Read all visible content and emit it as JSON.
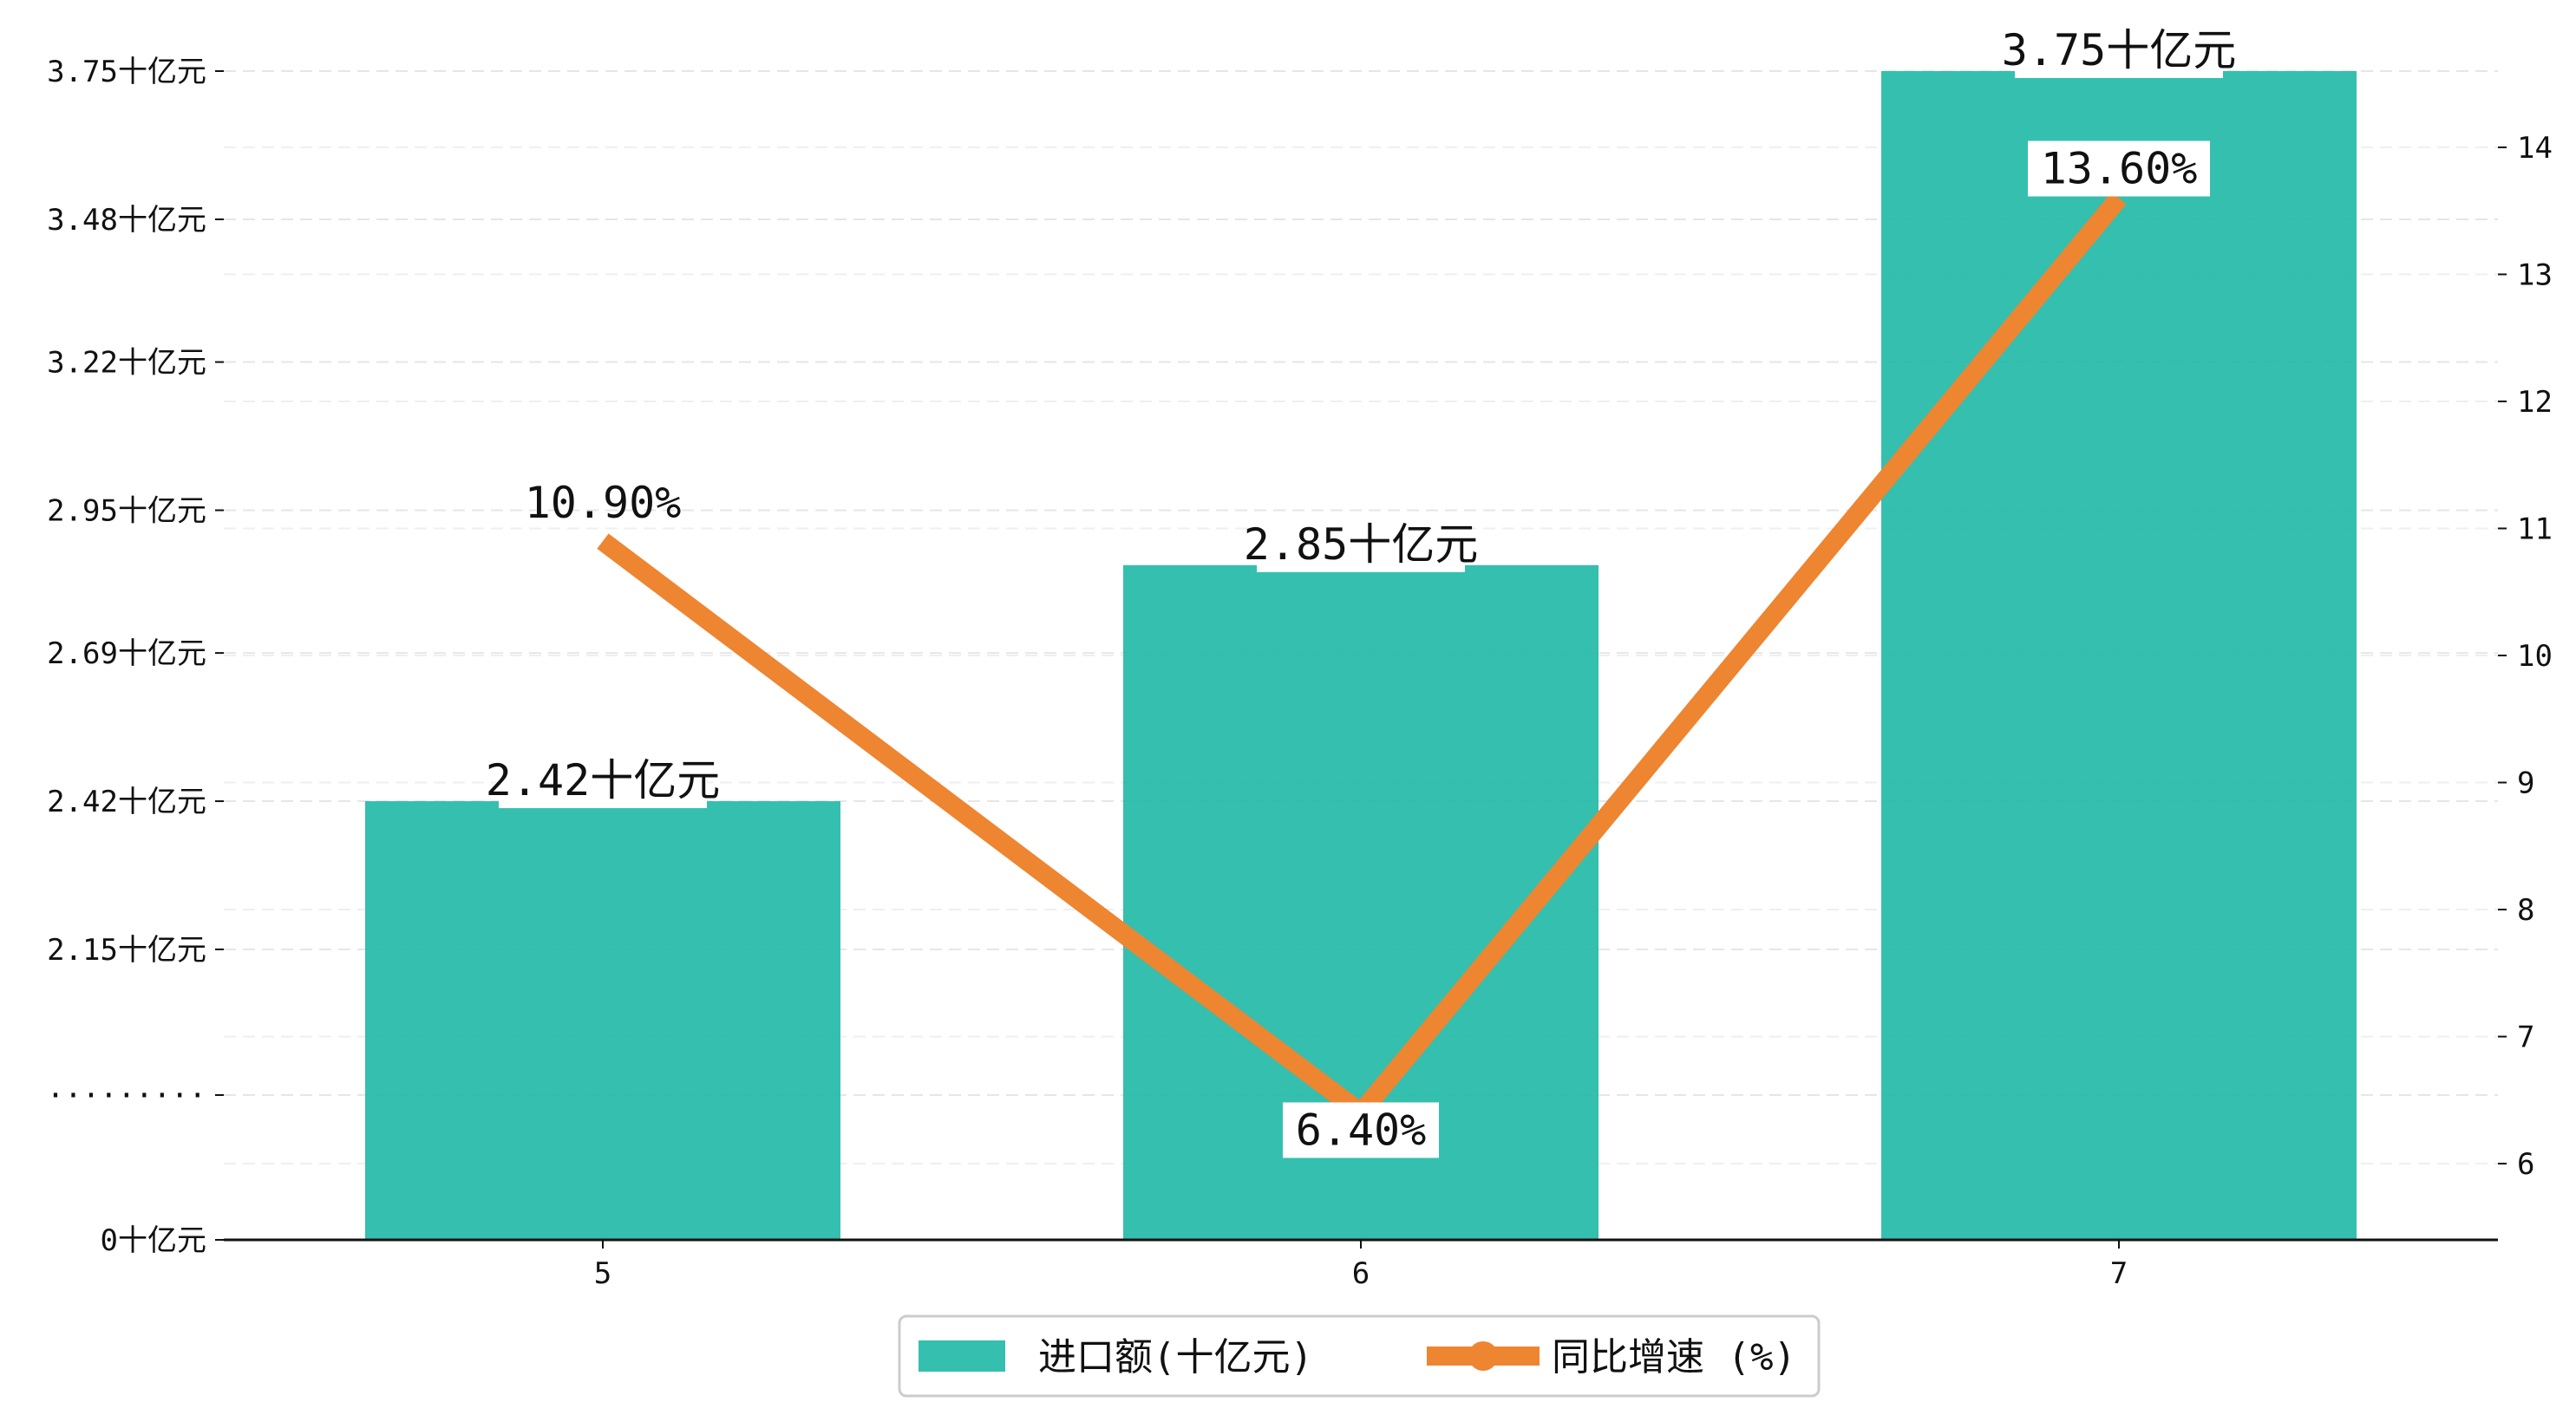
{
  "chart_data": {
    "type": "bar",
    "categories": [
      "5",
      "6",
      "7"
    ],
    "series": [
      {
        "name": "进口额(十亿元)",
        "kind": "bar",
        "axis": "left",
        "color": "#1fb8a6",
        "values": [
          2.42,
          2.85,
          3.75
        ],
        "labels": [
          "2.42十亿元",
          "2.85十亿元",
          "3.75十亿元"
        ]
      },
      {
        "name": "同比增速 (%)",
        "kind": "line",
        "axis": "right",
        "color": "#ee8531",
        "values": [
          10.9,
          6.4,
          13.6
        ],
        "labels": [
          "10.90%",
          "6.40%",
          "13.60%"
        ]
      }
    ],
    "left_axis": {
      "ticks": [
        0,
        1.875,
        2.15,
        2.42,
        2.69,
        2.95,
        3.22,
        3.48,
        3.75
      ],
      "tick_labels": [
        "0十亿元",
        "·········",
        "2.15十亿元",
        "2.42十亿元",
        "2.69十亿元",
        "2.95十亿元",
        "3.22十亿元",
        "3.48十亿元",
        "3.75十亿元"
      ],
      "broken": true
    },
    "right_axis": {
      "ticks": [
        6,
        7,
        8,
        9,
        10,
        11,
        12,
        13,
        14
      ],
      "tick_labels": [
        "6",
        "7",
        "8",
        "9",
        "10",
        "11",
        "12",
        "13",
        "14"
      ],
      "ylim": [
        5.4,
        14.6
      ]
    },
    "grid": true,
    "legend": "bottom-center"
  }
}
